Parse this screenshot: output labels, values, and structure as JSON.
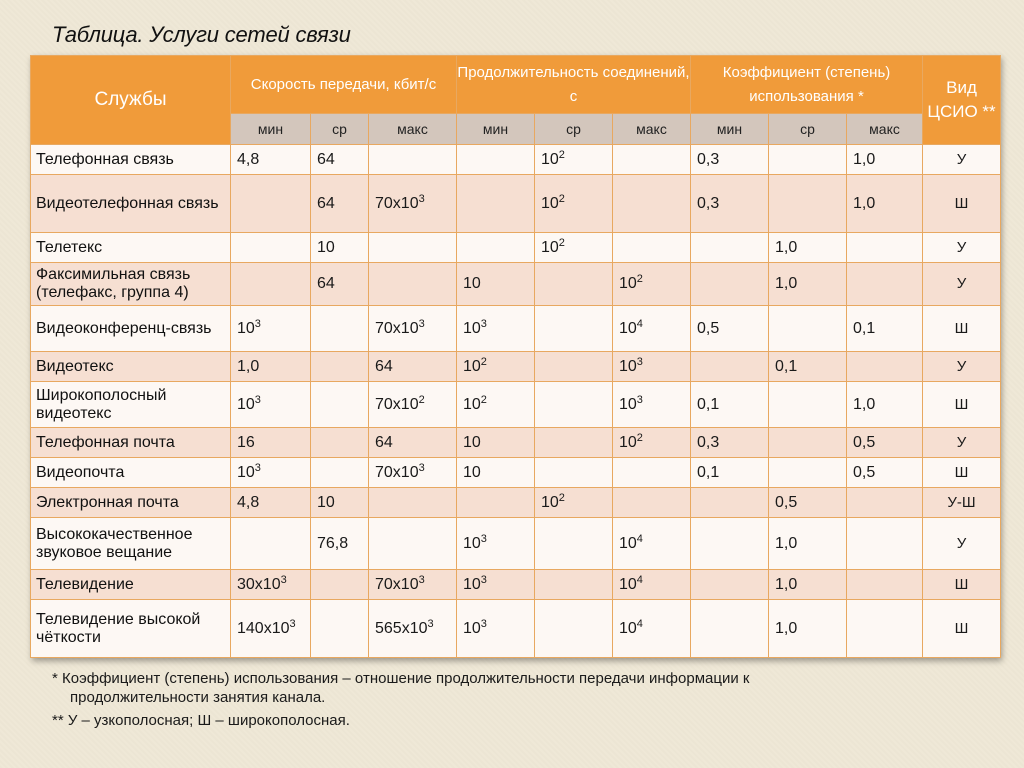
{
  "title": "Таблица. Услуги сетей связи",
  "colors": {
    "header": "#f09b3a",
    "subheader": "#d3c6bc",
    "row_odd": "#fdf8f4",
    "row_even": "#f6dfd2",
    "border": "#e8a860"
  },
  "header": {
    "services": "Службы",
    "speed": "Скорость передачи, кбит/с",
    "duration": "Продолжительность соединений, с",
    "coef": "Коэффициент (степень) использования *",
    "csio": "Вид ЦСИО **",
    "sub": [
      "мин",
      "ср",
      "макс",
      "мин",
      "ср",
      "макс",
      "мин",
      "ср",
      "макс"
    ]
  },
  "rows": [
    {
      "name": "Телефонная связь",
      "cells": [
        [
          "4,8",
          ""
        ],
        [
          "64",
          ""
        ],
        [
          "",
          ""
        ],
        [
          "",
          ""
        ],
        [
          "10",
          "2"
        ],
        [
          "",
          ""
        ],
        [
          "0,3",
          ""
        ],
        [
          "",
          ""
        ],
        [
          "1,0",
          ""
        ]
      ],
      "csio": "У"
    },
    {
      "name": "Видеотелефонная связь",
      "cells": [
        [
          "",
          ""
        ],
        [
          "64",
          ""
        ],
        [
          "70х10",
          "3"
        ],
        [
          "",
          ""
        ],
        [
          "10",
          "2"
        ],
        [
          "",
          ""
        ],
        [
          "0,3",
          ""
        ],
        [
          "",
          ""
        ],
        [
          "1,0",
          ""
        ]
      ],
      "csio": "Ш"
    },
    {
      "name": "Телетекс",
      "cells": [
        [
          "",
          ""
        ],
        [
          "10",
          ""
        ],
        [
          "",
          ""
        ],
        [
          "",
          ""
        ],
        [
          "10",
          "2"
        ],
        [
          "",
          ""
        ],
        [
          "",
          ""
        ],
        [
          "1,0",
          ""
        ],
        [
          "",
          ""
        ]
      ],
      "csio": "У"
    },
    {
      "name": "Факсимильная связь (телефакс, группа 4)",
      "cells": [
        [
          "",
          ""
        ],
        [
          "64",
          ""
        ],
        [
          "",
          ""
        ],
        [
          "10",
          ""
        ],
        [
          "",
          ""
        ],
        [
          "10",
          "2"
        ],
        [
          "",
          ""
        ],
        [
          "1,0",
          ""
        ],
        [
          "",
          ""
        ]
      ],
      "csio": "У"
    },
    {
      "name": "Видеоконференц-связь",
      "cells": [
        [
          "10",
          "3"
        ],
        [
          "",
          ""
        ],
        [
          "70х10",
          "3"
        ],
        [
          "10",
          "3"
        ],
        [
          "",
          ""
        ],
        [
          "10",
          "4"
        ],
        [
          "0,5",
          ""
        ],
        [
          "",
          ""
        ],
        [
          "0,1",
          ""
        ]
      ],
      "csio": "Ш"
    },
    {
      "name": "Видеотекс",
      "cells": [
        [
          "1,0",
          ""
        ],
        [
          "",
          ""
        ],
        [
          "64",
          ""
        ],
        [
          "10",
          "2"
        ],
        [
          "",
          ""
        ],
        [
          "10",
          "3"
        ],
        [
          "",
          ""
        ],
        [
          "0,1",
          ""
        ],
        [
          "",
          ""
        ]
      ],
      "csio": "У"
    },
    {
      "name": "Широкополосный видеотекс",
      "cells": [
        [
          "10",
          "3"
        ],
        [
          "",
          ""
        ],
        [
          "70х10",
          "2"
        ],
        [
          "10",
          "2"
        ],
        [
          "",
          ""
        ],
        [
          "10",
          "3"
        ],
        [
          "0,1",
          ""
        ],
        [
          "",
          ""
        ],
        [
          "1,0",
          ""
        ]
      ],
      "csio": "Ш"
    },
    {
      "name": "Телефонная почта",
      "cells": [
        [
          "16",
          ""
        ],
        [
          "",
          ""
        ],
        [
          "64",
          ""
        ],
        [
          "10",
          ""
        ],
        [
          "",
          ""
        ],
        [
          "10",
          "2"
        ],
        [
          "0,3",
          ""
        ],
        [
          "",
          ""
        ],
        [
          "0,5",
          ""
        ]
      ],
      "csio": "У"
    },
    {
      "name": "Видеопочта",
      "cells": [
        [
          "10",
          "3"
        ],
        [
          "",
          ""
        ],
        [
          "70х10",
          "3"
        ],
        [
          "10",
          ""
        ],
        [
          "",
          ""
        ],
        [
          "",
          ""
        ],
        [
          "0,1",
          ""
        ],
        [
          "",
          ""
        ],
        [
          "0,5",
          ""
        ]
      ],
      "csio": "Ш"
    },
    {
      "name": "Электронная почта",
      "cells": [
        [
          "4,8",
          ""
        ],
        [
          "10",
          ""
        ],
        [
          "",
          ""
        ],
        [
          "",
          ""
        ],
        [
          "10",
          "2"
        ],
        [
          "",
          ""
        ],
        [
          "",
          ""
        ],
        [
          "0,5",
          ""
        ],
        [
          "",
          ""
        ]
      ],
      "csio": "У-Ш"
    },
    {
      "name": "Высококачественное звуковое вещание",
      "cells": [
        [
          "",
          ""
        ],
        [
          "76,8",
          ""
        ],
        [
          "",
          ""
        ],
        [
          "10",
          "3"
        ],
        [
          "",
          ""
        ],
        [
          "10",
          "4"
        ],
        [
          "",
          ""
        ],
        [
          "1,0",
          ""
        ],
        [
          "",
          ""
        ]
      ],
      "csio": "У"
    },
    {
      "name": "Телевидение",
      "cells": [
        [
          "30х10",
          "3"
        ],
        [
          "",
          ""
        ],
        [
          "70х10",
          "3"
        ],
        [
          "10",
          "3"
        ],
        [
          "",
          ""
        ],
        [
          "10",
          "4"
        ],
        [
          "",
          ""
        ],
        [
          "1,0",
          ""
        ],
        [
          "",
          ""
        ]
      ],
      "csio": "Ш"
    },
    {
      "name": "Телевидение высокой чёткости",
      "cells": [
        [
          "140х10",
          "3"
        ],
        [
          "",
          ""
        ],
        [
          "565х10",
          "3"
        ],
        [
          "10",
          "3"
        ],
        [
          "",
          ""
        ],
        [
          "10",
          "4"
        ],
        [
          "",
          ""
        ],
        [
          "1,0",
          ""
        ],
        [
          "",
          ""
        ]
      ],
      "csio": "Ш"
    }
  ],
  "notes": {
    "n1a": "* Коэффициент (степень) использования – отношение продолжительности передачи информации к",
    "n1b": "продолжительности занятия канала.",
    "n2": "** У – узкополосная; Ш – широкополосная."
  }
}
